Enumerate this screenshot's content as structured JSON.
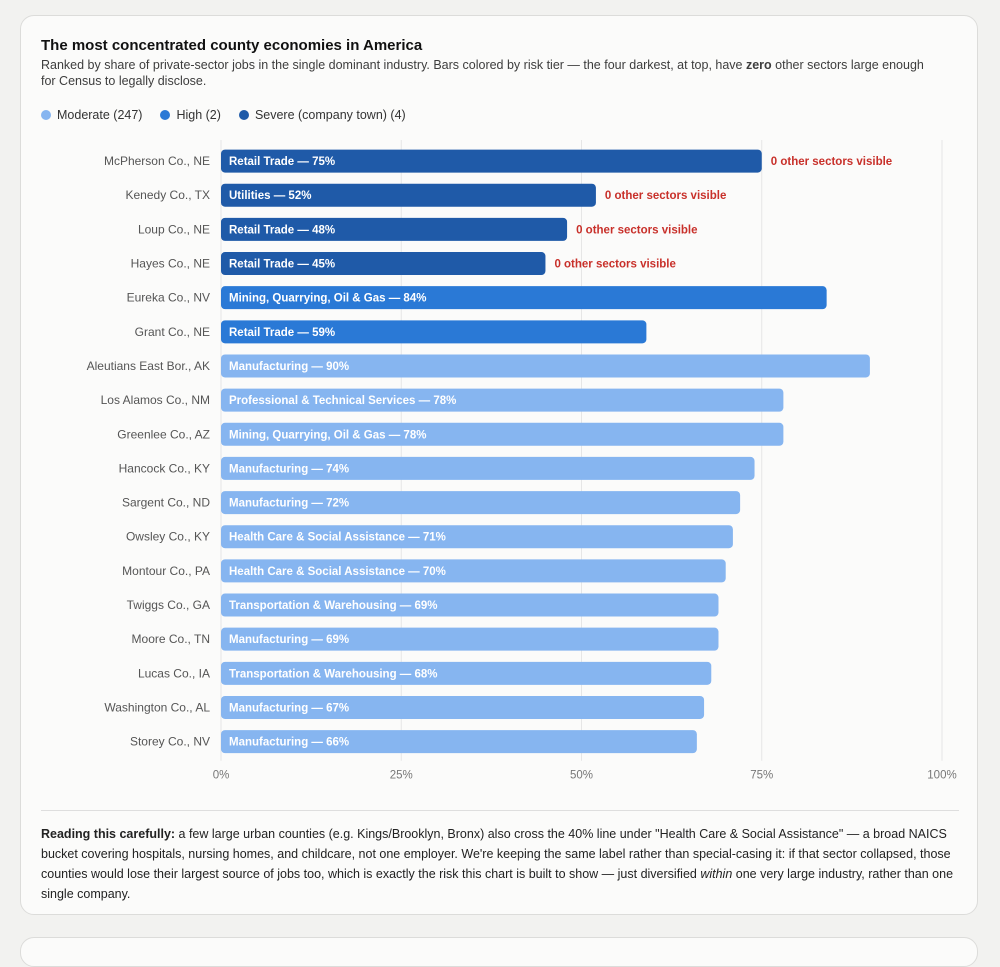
{
  "colors": {
    "moderate": "#86b5f0",
    "high": "#2a79d6",
    "severe": "#1f5aa8",
    "warning_text": "#c8302a",
    "grid": "#e6e6e6"
  },
  "header": {
    "title": "The most concentrated county economies in America",
    "subtitle_pre": "Ranked by share of private-sector jobs in the single dominant industry. Bars colored by risk tier — the four darkest, at top, have ",
    "subtitle_bold": "zero",
    "subtitle_post": " other sectors large enough for Census to legally disclose."
  },
  "legend": [
    {
      "label": "Moderate (247)",
      "color_key": "moderate"
    },
    {
      "label": "High (2)",
      "color_key": "high"
    },
    {
      "label": "Severe (company town) (4)",
      "color_key": "severe"
    }
  ],
  "chart_data": {
    "type": "bar",
    "orientation": "horizontal",
    "xlim": [
      0,
      100
    ],
    "x_ticks": [
      "0%",
      "25%",
      "50%",
      "75%",
      "100%"
    ],
    "grid": true,
    "bars": [
      {
        "county": "McPherson Co., NE",
        "sector": "Retail Trade",
        "value": 75,
        "label": "Retail Trade — 75%",
        "tier": "severe",
        "note": "0 other sectors visible"
      },
      {
        "county": "Kenedy Co., TX",
        "sector": "Utilities",
        "value": 52,
        "label": "Utilities — 52%",
        "tier": "severe",
        "note": "0 other sectors visible"
      },
      {
        "county": "Loup Co., NE",
        "sector": "Retail Trade",
        "value": 48,
        "label": "Retail Trade — 48%",
        "tier": "severe",
        "note": "0 other sectors visible"
      },
      {
        "county": "Hayes Co., NE",
        "sector": "Retail Trade",
        "value": 45,
        "label": "Retail Trade — 45%",
        "tier": "severe",
        "note": "0 other sectors visible"
      },
      {
        "county": "Eureka Co., NV",
        "sector": "Mining, Quarrying, Oil & Gas",
        "value": 84,
        "label": "Mining, Quarrying, Oil & Gas — 84%",
        "tier": "high"
      },
      {
        "county": "Grant Co., NE",
        "sector": "Retail Trade",
        "value": 59,
        "label": "Retail Trade — 59%",
        "tier": "high"
      },
      {
        "county": "Aleutians East Bor., AK",
        "sector": "Manufacturing",
        "value": 90,
        "label": "Manufacturing — 90%",
        "tier": "moderate"
      },
      {
        "county": "Los Alamos Co., NM",
        "sector": "Professional & Technical Services",
        "value": 78,
        "label": "Professional & Technical Services — 78%",
        "tier": "moderate"
      },
      {
        "county": "Greenlee Co., AZ",
        "sector": "Mining, Quarrying, Oil & Gas",
        "value": 78,
        "label": "Mining, Quarrying, Oil & Gas — 78%",
        "tier": "moderate"
      },
      {
        "county": "Hancock Co., KY",
        "sector": "Manufacturing",
        "value": 74,
        "label": "Manufacturing — 74%",
        "tier": "moderate"
      },
      {
        "county": "Sargent Co., ND",
        "sector": "Manufacturing",
        "value": 72,
        "label": "Manufacturing — 72%",
        "tier": "moderate"
      },
      {
        "county": "Owsley Co., KY",
        "sector": "Health Care & Social Assistance",
        "value": 71,
        "label": "Health Care & Social Assistance — 71%",
        "tier": "moderate"
      },
      {
        "county": "Montour Co., PA",
        "sector": "Health Care & Social Assistance",
        "value": 70,
        "label": "Health Care & Social Assistance — 70%",
        "tier": "moderate"
      },
      {
        "county": "Twiggs Co., GA",
        "sector": "Transportation & Warehousing",
        "value": 69,
        "label": "Transportation & Warehousing — 69%",
        "tier": "moderate"
      },
      {
        "county": "Moore Co., TN",
        "sector": "Manufacturing",
        "value": 69,
        "label": "Manufacturing — 69%",
        "tier": "moderate"
      },
      {
        "county": "Lucas Co., IA",
        "sector": "Transportation & Warehousing",
        "value": 68,
        "label": "Transportation & Warehousing — 68%",
        "tier": "moderate"
      },
      {
        "county": "Washington Co., AL",
        "sector": "Manufacturing",
        "value": 67,
        "label": "Manufacturing — 67%",
        "tier": "moderate"
      },
      {
        "county": "Storey Co., NV",
        "sector": "Manufacturing",
        "value": 66,
        "label": "Manufacturing — 66%",
        "tier": "moderate"
      }
    ]
  },
  "footnote": {
    "lead": "Reading this carefully:",
    "text_1": " a few large urban counties (e.g. Kings/Brooklyn, Bronx) also cross the 40% line under \"Health Care & Social Assistance\" — a broad NAICS bucket covering hospitals, nursing homes, and childcare, not one employer. We're keeping the same label rather than special-casing it: if that sector collapsed, those counties would lose their largest source of jobs too, which is exactly the risk this chart is built to show — just diversified ",
    "emphasis": "within",
    "text_2": " one very large industry, rather than one single company."
  }
}
